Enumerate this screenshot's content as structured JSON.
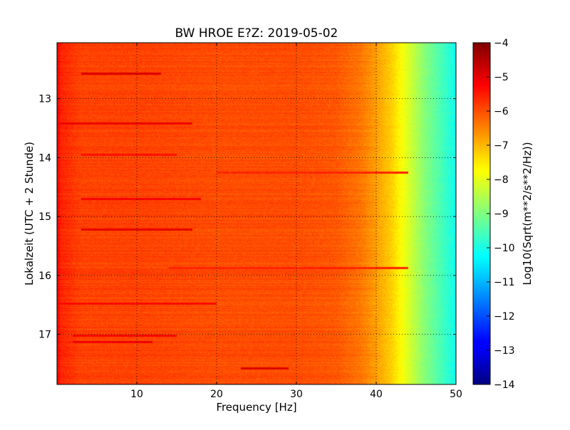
{
  "chart_data": {
    "type": "heatmap",
    "title": "BW HROE E?Z: 2019-05-02",
    "xlabel": "Frequency [Hz]",
    "ylabel": "Lokalzeit (UTC + 2 Stunde)",
    "xlim": [
      0,
      50
    ],
    "ylim": [
      12.05,
      17.85
    ],
    "y_inverted": true,
    "x_ticks": [
      10,
      20,
      30,
      40,
      50
    ],
    "x_tick_labels": [
      "10",
      "20",
      "30",
      "40",
      "50"
    ],
    "y_ticks": [
      13,
      14,
      15,
      16,
      17
    ],
    "y_tick_labels": [
      "13",
      "14",
      "15",
      "16",
      "17"
    ],
    "grid": true,
    "colormap": "jet",
    "colorbar": {
      "label": "Log10(Sqrt(m**2/s**2/Hz))",
      "range": [
        -14,
        -4
      ],
      "ticks": [
        -4,
        -5,
        -6,
        -7,
        -8,
        -9,
        -10,
        -11,
        -12,
        -13,
        -14
      ],
      "tick_labels": [
        "−4",
        "−5",
        "−6",
        "−7",
        "−8",
        "−9",
        "−10",
        "−11",
        "−12",
        "−13",
        "−14"
      ]
    },
    "frequency_profile": {
      "frequency_hz": [
        0,
        0.5,
        3,
        10,
        20,
        30,
        35,
        38,
        40,
        42,
        43,
        44,
        45,
        46,
        47,
        48,
        49,
        50
      ],
      "level": [
        -5.2,
        -5.6,
        -5.9,
        -5.9,
        -6.0,
        -6.0,
        -6.1,
        -6.4,
        -6.8,
        -7.3,
        -7.7,
        -8.1,
        -8.5,
        -8.9,
        -9.2,
        -9.5,
        -9.8,
        -10.1
      ]
    },
    "stripes": [
      {
        "time": 12.58,
        "f_start": 3,
        "f_end": 13,
        "level": -4.9
      },
      {
        "time": 13.42,
        "f_start": 0,
        "f_end": 17,
        "level": -5.1
      },
      {
        "time": 13.95,
        "f_start": 3,
        "f_end": 15,
        "level": -5.4
      },
      {
        "time": 14.25,
        "f_start": 20,
        "f_end": 44,
        "level": -5.6
      },
      {
        "time": 14.7,
        "f_start": 3,
        "f_end": 18,
        "level": -5.2
      },
      {
        "time": 15.22,
        "f_start": 3,
        "f_end": 17,
        "level": -5.0
      },
      {
        "time": 15.88,
        "f_start": 14,
        "f_end": 44,
        "level": -5.6
      },
      {
        "time": 16.48,
        "f_start": 0,
        "f_end": 20,
        "level": -5.3
      },
      {
        "time": 17.02,
        "f_start": 2,
        "f_end": 15,
        "level": -5.2
      },
      {
        "time": 17.13,
        "f_start": 2,
        "f_end": 12,
        "level": -5.1
      },
      {
        "time": 17.58,
        "f_start": 23,
        "f_end": 29,
        "level": -4.9
      }
    ]
  }
}
